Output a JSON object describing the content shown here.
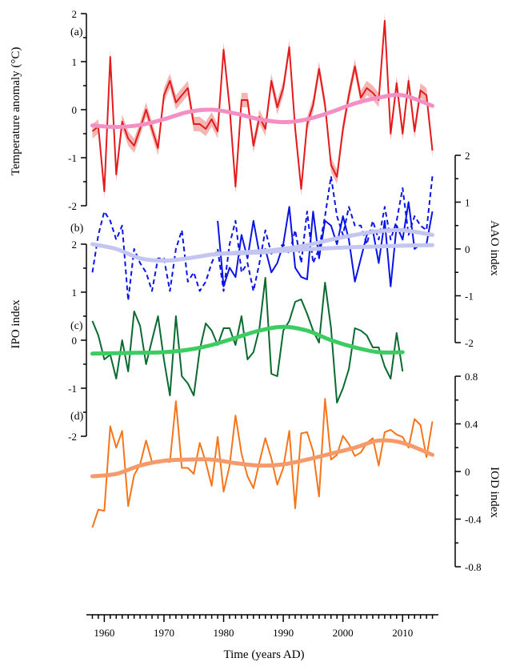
{
  "chart_data": {
    "type": "line",
    "xlabel": "Time (years AD)",
    "xlim": [
      1957,
      2016
    ],
    "xticks": [
      1960,
      1970,
      1980,
      1990,
      2000,
      2010
    ],
    "panels": [
      {
        "id": "a",
        "label": "(a)",
        "ylabel": "Temperature anomaly (°C)",
        "ylim": [
          -2,
          2
        ],
        "yticks": [
          -2,
          -1,
          0,
          1,
          2
        ],
        "axis_side": "left",
        "series": [
          {
            "style": "solid",
            "color": "#e41a1c",
            "band": 0.15,
            "band_color": "#f4b6b3",
            "x": [
              1958,
              1959,
              1960,
              1961,
              1962,
              1963,
              1964,
              1965,
              1966,
              1967,
              1968,
              1969,
              1970,
              1971,
              1972,
              1973,
              1974,
              1975,
              1976,
              1977,
              1978,
              1979,
              1980,
              1981,
              1982,
              1983,
              1984,
              1985,
              1986,
              1987,
              1988,
              1989,
              1990,
              1991,
              1992,
              1993,
              1994,
              1995,
              1996,
              1997,
              1998,
              1999,
              2000,
              2001,
              2002,
              2003,
              2004,
              2005,
              2006,
              2007,
              2008,
              2009,
              2010,
              2011,
              2012,
              2013,
              2014,
              2015
            ],
            "y": [
              -0.45,
              -0.35,
              -1.7,
              1.1,
              -1.35,
              -0.25,
              -0.6,
              -0.75,
              -0.4,
              0.0,
              -0.4,
              -0.8,
              0.3,
              0.6,
              0.15,
              0.3,
              0.45,
              -0.3,
              -0.3,
              -0.4,
              -0.2,
              -0.45,
              1.25,
              0.05,
              -1.6,
              0.2,
              0.2,
              -0.75,
              -0.15,
              -0.4,
              0.6,
              0.05,
              0.45,
              1.3,
              -0.4,
              -1.65,
              -0.3,
              0.1,
              0.85,
              0.1,
              -1.15,
              -1.4,
              -0.4,
              0.3,
              0.9,
              0.25,
              0.45,
              0.35,
              0.2,
              1.85,
              -0.5,
              0.55,
              -0.5,
              0.6,
              -0.45,
              0.4,
              0.3,
              -0.85
            ]
          },
          {
            "style": "smooth",
            "color": "#f48fc4",
            "x": [
              1958,
              1962,
              1966,
              1970,
              1974,
              1978,
              1982,
              1986,
              1990,
              1994,
              1998,
              2002,
              2006,
              2010,
              2015
            ],
            "y": [
              -0.33,
              -0.36,
              -0.32,
              -0.2,
              -0.05,
              0.0,
              -0.08,
              -0.2,
              -0.26,
              -0.2,
              -0.05,
              0.13,
              0.25,
              0.3,
              0.08
            ]
          }
        ]
      },
      {
        "id": "b",
        "label": "(b)",
        "ylabel": "AAO index",
        "ylim": [
          -2,
          2
        ],
        "yticks": [
          -2,
          -1,
          0,
          1,
          2
        ],
        "axis_side": "right",
        "series": [
          {
            "style": "solid",
            "color": "#0a14e6",
            "x": [
              1979,
              1980,
              1981,
              1982,
              1983,
              1984,
              1985,
              1986,
              1987,
              1988,
              1989,
              1990,
              1991,
              1992,
              1993,
              1994,
              1995,
              1996,
              1997,
              1998,
              1999,
              2000,
              2001,
              2002,
              2003,
              2004,
              2005,
              2006,
              2007,
              2008,
              2009,
              2010,
              2011,
              2012,
              2013,
              2014,
              2015
            ],
            "y": [
              0.6,
              -0.8,
              -0.4,
              -0.6,
              0.3,
              -0.2,
              0.6,
              -0.1,
              0.0,
              -0.5,
              -0.3,
              0.1,
              0.9,
              -0.4,
              -0.6,
              -0.65,
              0.8,
              -0.2,
              0.6,
              0.5,
              0.1,
              0.7,
              0.2,
              -0.7,
              -0.2,
              0.3,
              0.4,
              -0.3,
              0.6,
              -0.8,
              0.5,
              0.2,
              1.0,
              0.0,
              0.1,
              0.1,
              0.8
            ]
          },
          {
            "style": "dashed",
            "color": "#0a14e6",
            "x": [
              1958,
              1959,
              1960,
              1961,
              1962,
              1963,
              1964,
              1965,
              1966,
              1967,
              1968,
              1969,
              1970,
              1971,
              1972,
              1973,
              1974,
              1975,
              1976,
              1977,
              1978,
              1979,
              1980,
              1981,
              1982,
              1983,
              1984,
              1985,
              1986,
              1987,
              1988,
              1989,
              1990,
              1991,
              1992,
              1993,
              1994,
              1995,
              1996,
              1997,
              1998,
              1999,
              2000,
              2001,
              2002,
              2003,
              2004,
              2005,
              2006,
              2007,
              2008,
              2009,
              2010,
              2011,
              2012,
              2013,
              2014,
              2015
            ],
            "y": [
              -0.5,
              0.3,
              0.8,
              0.6,
              0.2,
              0.5,
              -1.1,
              0.0,
              -0.3,
              -0.5,
              -0.9,
              -0.2,
              -0.2,
              -0.9,
              0.0,
              0.4,
              -0.7,
              -0.5,
              -0.9,
              -0.7,
              -0.3,
              0.0,
              -0.9,
              0.1,
              0.6,
              -0.5,
              -0.3,
              -0.9,
              -0.3,
              0.4,
              -0.1,
              0.0,
              0.1,
              -0.1,
              0.4,
              -0.3,
              0.8,
              -0.3,
              0.0,
              0.7,
              1.55,
              0.7,
              0.3,
              0.9,
              0.5,
              0.5,
              0.1,
              0.6,
              0.2,
              0.9,
              0.2,
              0.6,
              1.3,
              0.3,
              0.7,
              0.5,
              0.4,
              1.55
            ]
          },
          {
            "style": "smooth",
            "color": "#c3c6f0",
            "x": [
              1958,
              1962,
              1966,
              1970,
              1974,
              1978,
              1982,
              1986,
              1990,
              1994,
              1998,
              2002,
              2006,
              2010,
              2015
            ],
            "y": [
              0.1,
              0.0,
              -0.2,
              -0.25,
              -0.2,
              -0.12,
              -0.08,
              -0.05,
              0.0,
              0.08,
              0.2,
              0.3,
              0.38,
              0.4,
              0.3
            ]
          },
          {
            "style": "smooth",
            "color": "#c3c6f0",
            "x": [
              1979,
              1985,
              1990,
              1995,
              2000,
              2005,
              2010,
              2015
            ],
            "y": [
              -0.1,
              -0.08,
              -0.04,
              0.0,
              0.03,
              0.05,
              0.07,
              0.08
            ]
          }
        ]
      },
      {
        "id": "c",
        "label": "(c)",
        "ylabel": "IPO index",
        "ylim": [
          -2,
          2
        ],
        "yticks": [
          -2,
          -1,
          0,
          1,
          2
        ],
        "axis_side": "left",
        "series": [
          {
            "style": "solid",
            "color": "#0a6a30",
            "x": [
              1958,
              1959,
              1960,
              1961,
              1962,
              1963,
              1964,
              1965,
              1966,
              1967,
              1968,
              1969,
              1970,
              1971,
              1972,
              1973,
              1974,
              1975,
              1976,
              1977,
              1978,
              1979,
              1980,
              1981,
              1982,
              1983,
              1984,
              1985,
              1986,
              1987,
              1988,
              1989,
              1990,
              1991,
              1992,
              1993,
              1994,
              1995,
              1996,
              1997,
              1998,
              1999,
              2000,
              2001,
              2002,
              2003,
              2004,
              2005,
              2006,
              2007,
              2008,
              2009,
              2010
            ],
            "y": [
              0.4,
              0.1,
              -0.4,
              -0.3,
              -0.8,
              0.0,
              -0.65,
              0.6,
              0.3,
              -0.5,
              0.0,
              0.5,
              -0.4,
              -1.15,
              0.5,
              -0.75,
              -0.9,
              -1.15,
              -0.2,
              0.35,
              0.2,
              -0.1,
              0.25,
              0.25,
              -0.1,
              0.5,
              -0.4,
              -0.25,
              0.25,
              1.3,
              -0.7,
              -0.75,
              0.2,
              0.4,
              0.8,
              0.85,
              0.55,
              0.2,
              -0.05,
              1.2,
              0.25,
              -1.3,
              -1.0,
              -0.6,
              0.25,
              0.2,
              0.1,
              -0.15,
              -0.15,
              -0.55,
              -0.8,
              0.15,
              -0.65
            ]
          },
          {
            "style": "smooth",
            "color": "#3dcc62",
            "x": [
              1958,
              1962,
              1966,
              1970,
              1974,
              1978,
              1982,
              1986,
              1990,
              1994,
              1998,
              2002,
              2006,
              2010
            ],
            "y": [
              -0.28,
              -0.27,
              -0.26,
              -0.25,
              -0.2,
              -0.1,
              0.05,
              0.2,
              0.28,
              0.2,
              0.0,
              -0.15,
              -0.25,
              -0.25
            ]
          }
        ]
      },
      {
        "id": "d",
        "label": "(d)",
        "ylabel": "IOD index",
        "ylim": [
          -0.8,
          0.8
        ],
        "yticks": [
          -0.8,
          -0.4,
          0,
          0.4,
          0.8
        ],
        "axis_side": "right",
        "series": [
          {
            "style": "solid",
            "color": "#f5751b",
            "x": [
              1958,
              1959,
              1960,
              1961,
              1962,
              1963,
              1964,
              1965,
              1966,
              1967,
              1968,
              1969,
              1970,
              1971,
              1972,
              1973,
              1974,
              1975,
              1976,
              1977,
              1978,
              1979,
              1980,
              1981,
              1982,
              1983,
              1984,
              1985,
              1986,
              1987,
              1988,
              1989,
              1990,
              1991,
              1992,
              1993,
              1994,
              1995,
              1996,
              1997,
              1998,
              1999,
              2000,
              2001,
              2002,
              2003,
              2004,
              2005,
              2006,
              2007,
              2008,
              2009,
              2010,
              2011,
              2012,
              2013,
              2014,
              2015
            ],
            "y": [
              -0.47,
              -0.32,
              -0.33,
              0.38,
              0.2,
              0.34,
              -0.29,
              -0.03,
              0.06,
              0.26,
              0.08,
              0.07,
              0.09,
              0.08,
              0.59,
              0.03,
              0.03,
              -0.02,
              0.24,
              0.08,
              -0.12,
              0.29,
              -0.17,
              0.05,
              0.47,
              0.15,
              -0.04,
              -0.14,
              0.08,
              0.28,
              0.11,
              -0.11,
              0.03,
              0.34,
              -0.31,
              0.32,
              0.33,
              0.17,
              -0.21,
              0.61,
              0.1,
              0.14,
              0.3,
              0.23,
              0.13,
              0.16,
              0.24,
              0.28,
              0.05,
              0.33,
              0.35,
              0.31,
              0.29,
              0.2,
              0.44,
              0.39,
              0.12,
              0.42
            ]
          },
          {
            "style": "smooth",
            "color": "#f79a6b",
            "x": [
              1958,
              1962,
              1966,
              1970,
              1974,
              1978,
              1982,
              1986,
              1990,
              1994,
              1998,
              2002,
              2006,
              2010,
              2015
            ],
            "y": [
              -0.04,
              -0.02,
              0.05,
              0.09,
              0.1,
              0.1,
              0.07,
              0.05,
              0.06,
              0.1,
              0.15,
              0.2,
              0.26,
              0.24,
              0.14
            ]
          }
        ]
      }
    ]
  }
}
